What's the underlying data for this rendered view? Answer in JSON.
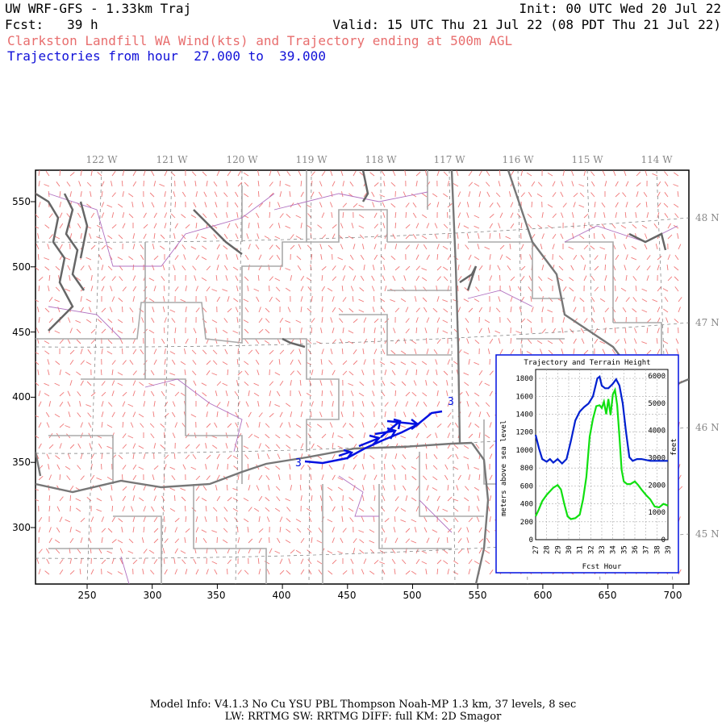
{
  "header": {
    "model_title": "UW WRF-GFS - 1.33km Traj",
    "init": "Init: 00 UTC Wed 20 Jul 22",
    "fcst": "Fcst:   39 h",
    "valid": "Valid: 15 UTC Thu 21 Jul 22 (08 PDT Thu 21 Jul 22)",
    "subtitle": "Clarkston Landfill WA Wind(kts) and Trajectory ending at 500m AGL",
    "traj_hours": "Trajectories from hour  27.000 to  39.000"
  },
  "map": {
    "x_ticks": [
      "250",
      "300",
      "350",
      "400",
      "450",
      "500",
      "550",
      "600",
      "650",
      "700"
    ],
    "y_ticks": [
      "550",
      "500",
      "450",
      "400",
      "350",
      "300"
    ],
    "lon_labels": [
      "122 W",
      "121 W",
      "120 W",
      "119 W",
      "118 W",
      "117 W",
      "116 W",
      "115 W",
      "114 W"
    ],
    "lat_labels": [
      "48 N",
      "47 N",
      "46 N",
      "45 N"
    ],
    "traj_start_label": "3",
    "traj_end_label": "3"
  },
  "inset": {
    "title": "Trajectory and Terrain Height",
    "ylabel_left": "meters above sea level",
    "ylabel_right": "feet",
    "xlabel": "Fcst Hour",
    "y_left_ticks": [
      "0",
      "200",
      "400",
      "600",
      "800",
      "1000",
      "1200",
      "1400",
      "1600",
      "1800"
    ],
    "y_right_ticks": [
      "0",
      "1000",
      "2000",
      "3000",
      "4000",
      "5000",
      "6000"
    ],
    "x_ticks": [
      "27",
      "28",
      "29",
      "30",
      "31",
      "32",
      "33",
      "34",
      "35",
      "36",
      "37",
      "38",
      "39"
    ]
  },
  "chart_data": {
    "type": "line",
    "title": "Trajectory and Terrain Height",
    "xlabel": "Fcst Hour",
    "ylabel": "meters above sea level",
    "xlim": [
      27,
      39
    ],
    "ylim": [
      0,
      1900
    ],
    "series": [
      {
        "color": "#0020d0",
        "x": [
          27,
          27.3,
          27.6,
          28,
          28.3,
          28.6,
          29,
          29.4,
          29.8,
          30.2,
          30.6,
          31,
          31.4,
          31.8,
          32.2,
          32.6,
          32.8,
          33,
          33.3,
          33.6,
          34,
          34.3,
          34.6,
          34.9,
          35.2,
          35.5,
          35.8,
          36.2,
          36.6,
          37,
          37.4,
          37.8,
          38.2,
          38.6,
          39
        ],
        "y": [
          1170,
          1020,
          900,
          870,
          900,
          860,
          900,
          850,
          900,
          1100,
          1330,
          1430,
          1480,
          1520,
          1600,
          1800,
          1820,
          1720,
          1690,
          1690,
          1740,
          1790,
          1720,
          1520,
          1200,
          920,
          880,
          900,
          900,
          890,
          880,
          880,
          880,
          880,
          880
        ]
      },
      {
        "color": "#10e010",
        "x": [
          27,
          27.3,
          27.6,
          28,
          28.3,
          28.6,
          29,
          29.3,
          29.6,
          29.9,
          30.2,
          30.6,
          31,
          31.3,
          31.6,
          31.9,
          32.2,
          32.5,
          32.8,
          33,
          33.2,
          33.4,
          33.6,
          33.8,
          34,
          34.2,
          34.4,
          34.6,
          34.8,
          35,
          35.3,
          35.6,
          36,
          36.3,
          36.6,
          37,
          37.4,
          37.8,
          38.2,
          38.6,
          39
        ],
        "y": [
          260,
          340,
          430,
          500,
          540,
          580,
          610,
          560,
          400,
          260,
          230,
          240,
          280,
          450,
          700,
          1150,
          1350,
          1490,
          1500,
          1470,
          1540,
          1400,
          1570,
          1390,
          1620,
          1670,
          1500,
          1150,
          780,
          650,
          620,
          620,
          650,
          610,
          560,
          500,
          450,
          370,
          360,
          400,
          380
        ]
      }
    ]
  }
}
